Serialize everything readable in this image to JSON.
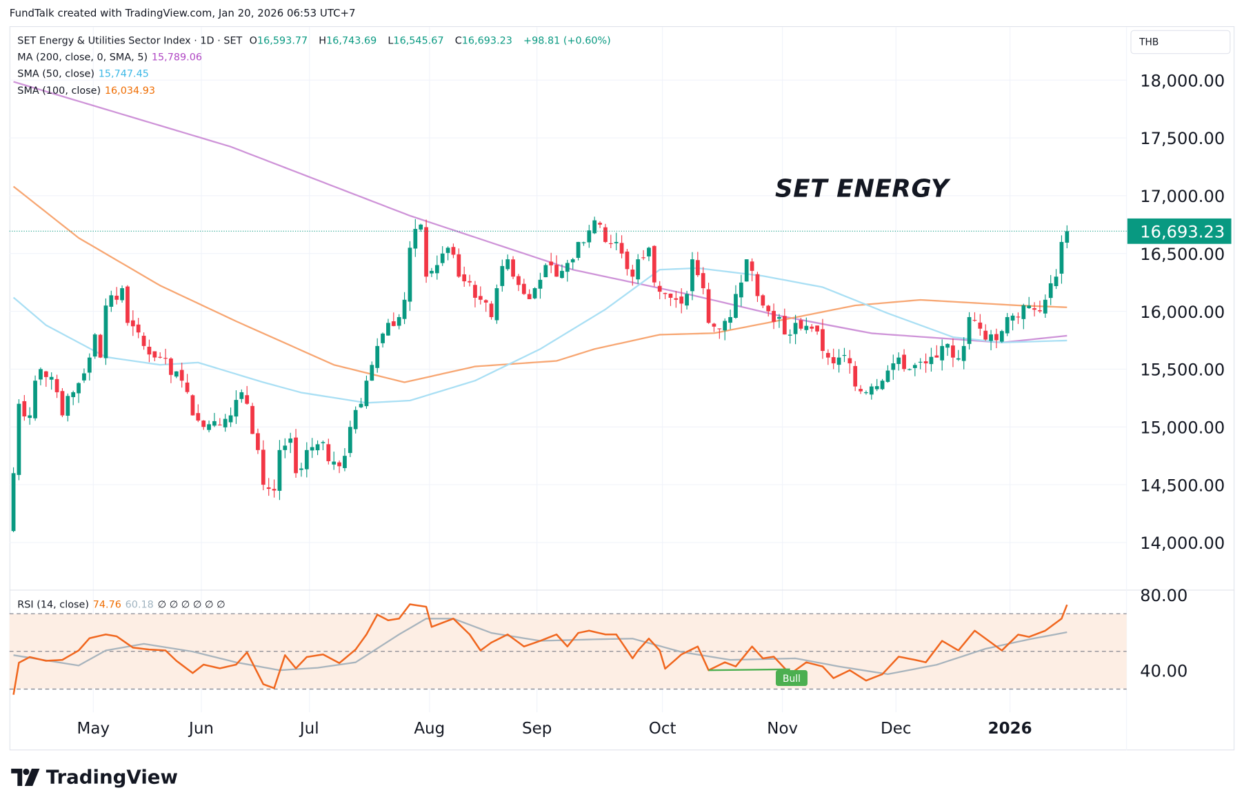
{
  "credit": "FundTalk created with TradingView.com, Jan 20, 2026 06:53 UTC+7",
  "header": {
    "symbol": "SET Energy & Utilities Sector Index · 1D · SET",
    "o_label": "O",
    "o": "16,593.77",
    "h_label": "H",
    "h": "16,743.69",
    "l_label": "L",
    "l": "16,545.67",
    "c_label": "C",
    "c": "16,693.23",
    "change": "+98.81 (+0.60%)"
  },
  "indicators": [
    {
      "label": "MA (200, close, 0, SMA, 5)",
      "value": "15,789.06",
      "color": "#b048c4"
    },
    {
      "label": "SMA (50, close)",
      "value": "15,747.45",
      "color": "#3cb8e6"
    },
    {
      "label": "SMA (100, close)",
      "value": "16,034.93",
      "color": "#ef6c00"
    }
  ],
  "currency": "THB",
  "annotation": "SET ENERGY",
  "last_price_label": "16,693.23",
  "rsi_legend": {
    "label": "RSI (14, close)",
    "value": "74.76",
    "ma_value": "60.18",
    "extras": "∅ ∅ ∅ ∅ ∅ ∅"
  },
  "bull_label": "Bull",
  "brand": "TradingView",
  "colors": {
    "up": "#089981",
    "down": "#f23645",
    "ma200": "#ce93d8",
    "sma50": "#a9dff4",
    "sma100": "#f7a672",
    "rsi": "#f0661e",
    "rsi_ma": "#a8b4bd",
    "bull": "#4caf50"
  },
  "chart_data": {
    "type": "candlestick",
    "title": "SET Energy & Utilities Sector Index · 1D · SET",
    "price_ticks": [
      "18,000.00",
      "17,500.00",
      "17,000.00",
      "16,500.00",
      "16,000.00",
      "15,500.00",
      "15,000.00",
      "14,500.00",
      "14,000.00"
    ],
    "price_tick_values": [
      18000,
      17500,
      17000,
      16500,
      16000,
      15500,
      15000,
      14500,
      14000
    ],
    "ylim": [
      13600,
      18200
    ],
    "x_ticks": [
      {
        "label": "May",
        "idx": 14.7
      },
      {
        "label": "Jun",
        "idx": 34.6
      },
      {
        "label": "Jul",
        "idx": 54.5
      },
      {
        "label": "Aug",
        "idx": 76.6
      },
      {
        "label": "Sep",
        "idx": 96.4
      },
      {
        "label": "Oct",
        "idx": 119.5
      },
      {
        "label": "Nov",
        "idx": 141.6
      },
      {
        "label": "Dec",
        "idx": 162.5
      },
      {
        "label": "2026",
        "idx": 183.5,
        "bold": true
      }
    ],
    "num_candles": 195,
    "first_open": 14100,
    "last_candle": {
      "o": 16593.77,
      "h": 16743.69,
      "l": 16545.67,
      "c": 16693.23
    },
    "close_keypoints": [
      [
        0,
        14600
      ],
      [
        1,
        15200
      ],
      [
        3,
        15100
      ],
      [
        4,
        15400
      ],
      [
        5,
        15500
      ],
      [
        8,
        15300
      ],
      [
        9,
        15100
      ],
      [
        11,
        15300
      ],
      [
        14,
        15600
      ],
      [
        15,
        15800
      ],
      [
        16,
        15600
      ],
      [
        17,
        16050
      ],
      [
        19,
        16100
      ],
      [
        20,
        16200
      ],
      [
        21,
        15900
      ],
      [
        24,
        15700
      ],
      [
        27,
        15600
      ],
      [
        29,
        15450
      ],
      [
        31,
        15400
      ],
      [
        33,
        15100
      ],
      [
        35,
        15000
      ],
      [
        37,
        15050
      ],
      [
        40,
        15100
      ],
      [
        42,
        15300
      ],
      [
        43,
        15200
      ],
      [
        45,
        14800
      ],
      [
        46,
        14500
      ],
      [
        48,
        14450
      ],
      [
        49,
        14800
      ],
      [
        51,
        14900
      ],
      [
        52,
        14600
      ],
      [
        54,
        14800
      ],
      [
        56,
        14850
      ],
      [
        59,
        14700
      ],
      [
        61,
        14750
      ],
      [
        62,
        15000
      ],
      [
        64,
        15200
      ],
      [
        65,
        15400
      ],
      [
        67,
        15700
      ],
      [
        69,
        15900
      ],
      [
        71,
        15950
      ],
      [
        72,
        16100
      ],
      [
        73,
        16550
      ],
      [
        75,
        16750
      ],
      [
        76,
        16300
      ],
      [
        77,
        16350
      ],
      [
        79,
        16500
      ],
      [
        80,
        16550
      ],
      [
        82,
        16300
      ],
      [
        84,
        16250
      ],
      [
        86,
        16100
      ],
      [
        88,
        15950
      ],
      [
        89,
        16200
      ],
      [
        91,
        16450
      ],
      [
        92,
        16300
      ],
      [
        94,
        16150
      ],
      [
        96,
        16200
      ],
      [
        98,
        16400
      ],
      [
        100,
        16300
      ],
      [
        101,
        16350
      ],
      [
        103,
        16450
      ],
      [
        104,
        16600
      ],
      [
        106,
        16700
      ],
      [
        108,
        16750
      ],
      [
        109,
        16600
      ],
      [
        111,
        16600
      ],
      [
        112,
        16500
      ],
      [
        114,
        16300
      ],
      [
        115,
        16450
      ],
      [
        117,
        16550
      ],
      [
        118,
        16250
      ],
      [
        120,
        16150
      ],
      [
        122,
        16100
      ],
      [
        124,
        16150
      ],
      [
        125,
        16450
      ],
      [
        127,
        16200
      ],
      [
        128,
        15900
      ],
      [
        130,
        15850
      ],
      [
        132,
        15950
      ],
      [
        133,
        16150
      ],
      [
        135,
        16450
      ],
      [
        136,
        16350
      ],
      [
        138,
        16050
      ],
      [
        139,
        16000
      ],
      [
        141,
        15950
      ],
      [
        142,
        15800
      ],
      [
        144,
        15900
      ],
      [
        145,
        15850
      ],
      [
        147,
        15850
      ],
      [
        150,
        15600
      ],
      [
        151,
        15550
      ],
      [
        152,
        15600
      ],
      [
        154,
        15550
      ],
      [
        155,
        15350
      ],
      [
        157,
        15300
      ],
      [
        158,
        15350
      ],
      [
        160,
        15400
      ],
      [
        162,
        15550
      ],
      [
        163,
        15600
      ],
      [
        165,
        15500
      ],
      [
        168,
        15550
      ],
      [
        170,
        15600
      ],
      [
        171,
        15700
      ],
      [
        173,
        15600
      ],
      [
        175,
        15700
      ],
      [
        176,
        15950
      ],
      [
        178,
        15850
      ],
      [
        180,
        15800
      ],
      [
        181,
        15750
      ],
      [
        183,
        15950
      ],
      [
        185,
        15950
      ],
      [
        187,
        16050
      ],
      [
        189,
        16000
      ],
      [
        190,
        16100
      ],
      [
        192,
        16300
      ],
      [
        193,
        16600
      ],
      [
        194,
        16693.23
      ]
    ],
    "ma200": [
      [
        0,
        17986
      ],
      [
        40,
        17424
      ],
      [
        73,
        16827
      ],
      [
        103,
        16360
      ],
      [
        125,
        16140
      ],
      [
        141,
        15962
      ],
      [
        158,
        15810
      ],
      [
        182,
        15730
      ],
      [
        194,
        15789.06
      ]
    ],
    "sma100": [
      [
        0,
        17080
      ],
      [
        12,
        16635
      ],
      [
        27,
        16223
      ],
      [
        41,
        15914
      ],
      [
        59,
        15537
      ],
      [
        72,
        15386
      ],
      [
        85,
        15523
      ],
      [
        100,
        15571
      ],
      [
        107,
        15674
      ],
      [
        119,
        15798
      ],
      [
        129,
        15811
      ],
      [
        144,
        15948
      ],
      [
        155,
        16051
      ],
      [
        167,
        16099
      ],
      [
        185,
        16051
      ],
      [
        194,
        16034.93
      ]
    ],
    "sma50": [
      [
        0,
        16120
      ],
      [
        6,
        15880
      ],
      [
        17,
        15605
      ],
      [
        27,
        15537
      ],
      [
        34,
        15557
      ],
      [
        46,
        15386
      ],
      [
        53,
        15297
      ],
      [
        65,
        15208
      ],
      [
        73,
        15228
      ],
      [
        85,
        15400
      ],
      [
        97,
        15674
      ],
      [
        109,
        16017
      ],
      [
        119,
        16360
      ],
      [
        126,
        16374
      ],
      [
        138,
        16306
      ],
      [
        149,
        16209
      ],
      [
        161,
        15983
      ],
      [
        173,
        15777
      ],
      [
        182,
        15730
      ],
      [
        194,
        15747.45
      ]
    ],
    "rsi": {
      "ticks": [
        "80.00",
        "40.00"
      ],
      "tick_values": [
        80,
        40
      ],
      "bands": [
        70,
        50,
        30
      ],
      "ylim": [
        20,
        82
      ],
      "values": [
        [
          0,
          27
        ],
        [
          1,
          44
        ],
        [
          3,
          47
        ],
        [
          6,
          45
        ],
        [
          9,
          45.5
        ],
        [
          12,
          50.5
        ],
        [
          14,
          57
        ],
        [
          17,
          59
        ],
        [
          19,
          58
        ],
        [
          22,
          52
        ],
        [
          25,
          51
        ],
        [
          28,
          50.5
        ],
        [
          30,
          45
        ],
        [
          33,
          38.5
        ],
        [
          35,
          43
        ],
        [
          38,
          41
        ],
        [
          41,
          43
        ],
        [
          43,
          49.5
        ],
        [
          46,
          32.6
        ],
        [
          48,
          30.5
        ],
        [
          50,
          48
        ],
        [
          52,
          41
        ],
        [
          54,
          47
        ],
        [
          57,
          48.4
        ],
        [
          60,
          43.8
        ],
        [
          63,
          51
        ],
        [
          65,
          59
        ],
        [
          67,
          69.5
        ],
        [
          69,
          66.5
        ],
        [
          71,
          67.4
        ],
        [
          73,
          75
        ],
        [
          76,
          73.7
        ],
        [
          77,
          63
        ],
        [
          81,
          67.4
        ],
        [
          84,
          59
        ],
        [
          86,
          50.5
        ],
        [
          88,
          54.7
        ],
        [
          91,
          59
        ],
        [
          94,
          52.6
        ],
        [
          97,
          55.6
        ],
        [
          100,
          59
        ],
        [
          102,
          52.6
        ],
        [
          104,
          59.8
        ],
        [
          106,
          61
        ],
        [
          109,
          59
        ],
        [
          111,
          59
        ],
        [
          114,
          46.3
        ],
        [
          115,
          50.5
        ],
        [
          117,
          56.8
        ],
        [
          119,
          50.5
        ],
        [
          120,
          40.8
        ],
        [
          123,
          48.4
        ],
        [
          126,
          52.6
        ],
        [
          128,
          40
        ],
        [
          131,
          44.2
        ],
        [
          133,
          42
        ],
        [
          136,
          52.6
        ],
        [
          138,
          46.3
        ],
        [
          140,
          47.2
        ],
        [
          143,
          38
        ],
        [
          146,
          44.2
        ],
        [
          149,
          42
        ],
        [
          151,
          35.8
        ],
        [
          154,
          40
        ],
        [
          157,
          34.5
        ],
        [
          160,
          37.9
        ],
        [
          163,
          47.2
        ],
        [
          166,
          45.5
        ],
        [
          168,
          44.2
        ],
        [
          171,
          55.6
        ],
        [
          174,
          50.5
        ],
        [
          177,
          61
        ],
        [
          180,
          54.7
        ],
        [
          182,
          50.5
        ],
        [
          185,
          58.9
        ],
        [
          187,
          57.7
        ],
        [
          190,
          61
        ],
        [
          193,
          67.4
        ],
        [
          194,
          74.76
        ]
      ],
      "ma": [
        [
          0,
          48
        ],
        [
          12,
          42.5
        ],
        [
          17,
          50.5
        ],
        [
          24,
          54
        ],
        [
          33,
          49.9
        ],
        [
          41,
          44.2
        ],
        [
          49,
          40
        ],
        [
          56,
          41.3
        ],
        [
          63,
          44.2
        ],
        [
          71,
          59
        ],
        [
          76,
          67.4
        ],
        [
          81,
          67.4
        ],
        [
          88,
          59.8
        ],
        [
          97,
          55.6
        ],
        [
          107,
          56.4
        ],
        [
          114,
          56.8
        ],
        [
          123,
          49.7
        ],
        [
          132,
          45.5
        ],
        [
          144,
          46.3
        ],
        [
          152,
          42
        ],
        [
          161,
          37.9
        ],
        [
          170,
          42.9
        ],
        [
          179,
          51.4
        ],
        [
          187,
          56.4
        ],
        [
          194,
          60.18
        ]
      ],
      "bull_divergence": [
        [
          128,
          40
        ],
        [
          143,
          40.5
        ]
      ]
    }
  }
}
